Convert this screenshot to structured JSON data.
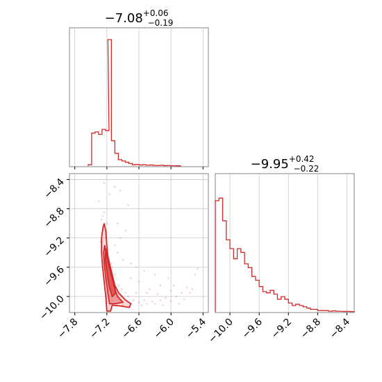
{
  "chart_data": {
    "type": "corner",
    "color": "#d62728",
    "grid": true,
    "panels": [
      {
        "id": "hist-x",
        "type": "step-histogram",
        "title": {
          "median": "−7.08",
          "plus": "+0.06",
          "minus": "−0.19"
        },
        "xlim": [
          -7.9,
          -5.3
        ],
        "bin_width": 0.065,
        "bins": [
          {
            "x0": -7.55,
            "count": 0.01
          },
          {
            "x0": -7.485,
            "count": 0.26
          },
          {
            "x0": -7.42,
            "count": 0.27
          },
          {
            "x0": -7.355,
            "count": 0.25
          },
          {
            "x0": -7.29,
            "count": 0.29
          },
          {
            "x0": -7.225,
            "count": 0.28
          },
          {
            "x0": -7.18,
            "count": 1.0
          },
          {
            "x0": -7.115,
            "count": 0.2
          },
          {
            "x0": -7.05,
            "count": 0.1
          },
          {
            "x0": -6.985,
            "count": 0.05
          },
          {
            "x0": -6.92,
            "count": 0.04
          },
          {
            "x0": -6.855,
            "count": 0.03
          },
          {
            "x0": -6.79,
            "count": 0.02
          },
          {
            "x0": -6.725,
            "count": 0.01
          },
          {
            "x0": -6.66,
            "count": 0.012
          },
          {
            "x0": -6.595,
            "count": 0.008
          },
          {
            "x0": -6.53,
            "count": 0.01
          },
          {
            "x0": -6.465,
            "count": 0.006
          },
          {
            "x0": -6.4,
            "count": 0.008
          },
          {
            "x0": -6.335,
            "count": 0.005
          },
          {
            "x0": -6.27,
            "count": 0.004
          },
          {
            "x0": -6.205,
            "count": 0.006
          },
          {
            "x0": -6.14,
            "count": 0.003
          },
          {
            "x0": -6.075,
            "count": 0.004
          },
          {
            "x0": -6.01,
            "count": 0.002
          },
          {
            "x0": -5.945,
            "count": 0.002
          },
          {
            "x0": -5.88,
            "count": 0.001
          }
        ],
        "xgrid": [
          -7.8,
          -7.2,
          -6.6,
          -6.0,
          -5.4
        ]
      },
      {
        "id": "hist-y",
        "type": "step-histogram",
        "title": {
          "median": "−9.95",
          "plus": "+0.42",
          "minus": "−0.22"
        },
        "xlim": [
          -10.2,
          -8.3
        ],
        "bin_width": 0.05,
        "bins": [
          {
            "x0": -10.2,
            "count": 0.88
          },
          {
            "x0": -10.15,
            "count": 0.9
          },
          {
            "x0": -10.1,
            "count": 0.72
          },
          {
            "x0": -10.05,
            "count": 0.57
          },
          {
            "x0": -10.0,
            "count": 0.5
          },
          {
            "x0": -9.95,
            "count": 0.42
          },
          {
            "x0": -9.9,
            "count": 0.5
          },
          {
            "x0": -9.85,
            "count": 0.47
          },
          {
            "x0": -9.8,
            "count": 0.38
          },
          {
            "x0": -9.75,
            "count": 0.35
          },
          {
            "x0": -9.7,
            "count": 0.28
          },
          {
            "x0": -9.65,
            "count": 0.25
          },
          {
            "x0": -9.6,
            "count": 0.2
          },
          {
            "x0": -9.55,
            "count": 0.16
          },
          {
            "x0": -9.5,
            "count": 0.15
          },
          {
            "x0": -9.45,
            "count": 0.17
          },
          {
            "x0": -9.4,
            "count": 0.14
          },
          {
            "x0": -9.35,
            "count": 0.1
          },
          {
            "x0": -9.3,
            "count": 0.12
          },
          {
            "x0": -9.25,
            "count": 0.1
          },
          {
            "x0": -9.2,
            "count": 0.07
          },
          {
            "x0": -9.15,
            "count": 0.05
          },
          {
            "x0": -9.1,
            "count": 0.06
          },
          {
            "x0": -9.05,
            "count": 0.05
          },
          {
            "x0": -9.0,
            "count": 0.04
          },
          {
            "x0": -8.95,
            "count": 0.03
          },
          {
            "x0": -8.9,
            "count": 0.02
          },
          {
            "x0": -8.85,
            "count": 0.02
          },
          {
            "x0": -8.8,
            "count": 0.01
          },
          {
            "x0": -8.75,
            "count": 0.01
          },
          {
            "x0": -8.7,
            "count": 0.01
          },
          {
            "x0": -8.65,
            "count": 0.005
          },
          {
            "x0": -8.6,
            "count": 0.008
          },
          {
            "x0": -8.55,
            "count": 0.005
          },
          {
            "x0": -8.5,
            "count": 0.004
          },
          {
            "x0": -8.45,
            "count": 0.003
          },
          {
            "x0": -8.4,
            "count": 0.003
          },
          {
            "x0": -8.35,
            "count": 0.002
          }
        ],
        "xticks": [
          "−10.0",
          "−9.6",
          "−9.2",
          "−8.8",
          "−8.4"
        ],
        "xtick_values": [
          -10.0,
          -9.6,
          -9.2,
          -8.8,
          -8.4
        ]
      },
      {
        "id": "scatter-xy",
        "type": "scatter-contour",
        "xlim": [
          -7.9,
          -5.3
        ],
        "ylim": [
          -10.22,
          -8.32
        ],
        "xticks": [
          "−7.8",
          "−7.2",
          "−6.6",
          "−6.0",
          "−5.4"
        ],
        "xtick_values": [
          -7.8,
          -7.2,
          -6.6,
          -6.0,
          -5.4
        ],
        "yticks": [
          "−8.4",
          "−8.8",
          "−9.2",
          "−9.6",
          "−10.0"
        ],
        "ytick_values": [
          -8.4,
          -8.8,
          -9.2,
          -9.6,
          -10.0
        ],
        "contour_outer": [
          [
            -7.25,
            -9.0
          ],
          [
            -7.22,
            -9.1
          ],
          [
            -7.2,
            -9.3
          ],
          [
            -7.18,
            -9.45
          ],
          [
            -7.15,
            -9.55
          ],
          [
            -7.1,
            -9.7
          ],
          [
            -7.05,
            -9.85
          ],
          [
            -6.98,
            -9.95
          ],
          [
            -6.85,
            -10.05
          ],
          [
            -6.75,
            -10.1
          ],
          [
            -6.78,
            -10.15
          ],
          [
            -6.95,
            -10.13
          ],
          [
            -7.1,
            -10.12
          ],
          [
            -7.13,
            -10.2
          ],
          [
            -7.2,
            -10.2
          ],
          [
            -7.22,
            -10.0
          ],
          [
            -7.25,
            -9.8
          ],
          [
            -7.28,
            -9.6
          ],
          [
            -7.3,
            -9.4
          ],
          [
            -7.3,
            -9.2
          ],
          [
            -7.27,
            -9.05
          ]
        ],
        "contour_inner": [
          [
            -7.24,
            -9.3
          ],
          [
            -7.2,
            -9.45
          ],
          [
            -7.15,
            -9.6
          ],
          [
            -7.1,
            -9.75
          ],
          [
            -7.05,
            -9.9
          ],
          [
            -7.0,
            -10.0
          ],
          [
            -6.9,
            -10.08
          ],
          [
            -7.05,
            -10.1
          ],
          [
            -7.15,
            -10.1
          ],
          [
            -7.18,
            -9.95
          ],
          [
            -7.22,
            -9.75
          ],
          [
            -7.25,
            -9.55
          ],
          [
            -7.26,
            -9.4
          ]
        ],
        "contour_core": [
          [
            -7.22,
            -9.35
          ],
          [
            -7.18,
            -9.5
          ],
          [
            -7.13,
            -9.65
          ],
          [
            -7.08,
            -9.8
          ],
          [
            -7.03,
            -9.95
          ],
          [
            -7.1,
            -10.0
          ],
          [
            -7.16,
            -9.85
          ],
          [
            -7.2,
            -9.65
          ],
          [
            -7.23,
            -9.5
          ]
        ],
        "points": [
          [
            -7.25,
            -8.85
          ],
          [
            -7.3,
            -8.95
          ],
          [
            -7.28,
            -9.1
          ],
          [
            -7.22,
            -9.2
          ],
          [
            -7.32,
            -9.25
          ],
          [
            -7.18,
            -9.5
          ],
          [
            -7.12,
            -9.55
          ],
          [
            -7.05,
            -9.7
          ],
          [
            -7.08,
            -9.8
          ],
          [
            -6.98,
            -9.85
          ],
          [
            -6.92,
            -9.9
          ],
          [
            -6.85,
            -9.95
          ],
          [
            -6.8,
            -10.0
          ],
          [
            -6.7,
            -10.05
          ],
          [
            -6.6,
            -10.08
          ],
          [
            -6.5,
            -10.05
          ],
          [
            -6.45,
            -10.1
          ],
          [
            -6.35,
            -10.07
          ],
          [
            -6.3,
            -10.1
          ],
          [
            -6.2,
            -10.05
          ],
          [
            -6.1,
            -10.02
          ],
          [
            -6.0,
            -10.06
          ],
          [
            -5.9,
            -10.0
          ],
          [
            -5.8,
            -9.95
          ],
          [
            -5.75,
            -10.04
          ],
          [
            -5.7,
            -9.88
          ],
          [
            -5.6,
            -9.9
          ],
          [
            -5.55,
            -9.7
          ],
          [
            -5.5,
            -9.62
          ],
          [
            -6.05,
            -9.75
          ],
          [
            -6.3,
            -9.7
          ],
          [
            -6.5,
            -9.65
          ],
          [
            -6.65,
            -9.6
          ],
          [
            -6.75,
            -9.55
          ],
          [
            -6.9,
            -9.5
          ],
          [
            -7.0,
            -9.4
          ],
          [
            -7.05,
            -9.3
          ],
          [
            -6.95,
            -9.2
          ],
          [
            -7.0,
            -9.0
          ],
          [
            -6.85,
            -9.1
          ],
          [
            -6.8,
            -8.75
          ],
          [
            -7.25,
            -8.45
          ],
          [
            -7.05,
            -8.5
          ],
          [
            -6.95,
            -8.55
          ],
          [
            -7.35,
            -8.7
          ],
          [
            -7.15,
            -8.6
          ],
          [
            -6.6,
            -9.8
          ],
          [
            -6.4,
            -9.9
          ],
          [
            -6.2,
            -9.85
          ],
          [
            -6.0,
            -9.92
          ],
          [
            -5.85,
            -10.1
          ],
          [
            -6.15,
            -10.12
          ],
          [
            -6.55,
            -10.12
          ],
          [
            -6.9,
            -10.12
          ],
          [
            -7.1,
            -10.05
          ],
          [
            -7.15,
            -9.9
          ],
          [
            -7.1,
            -9.6
          ],
          [
            -7.2,
            -9.0
          ],
          [
            -7.28,
            -8.9
          ],
          [
            -6.75,
            -9.75
          ],
          [
            -6.65,
            -9.95
          ],
          [
            -6.45,
            -9.95
          ],
          [
            -6.25,
            -9.97
          ],
          [
            -5.95,
            -9.85
          ],
          [
            -5.65,
            -9.95
          ]
        ]
      }
    ]
  }
}
